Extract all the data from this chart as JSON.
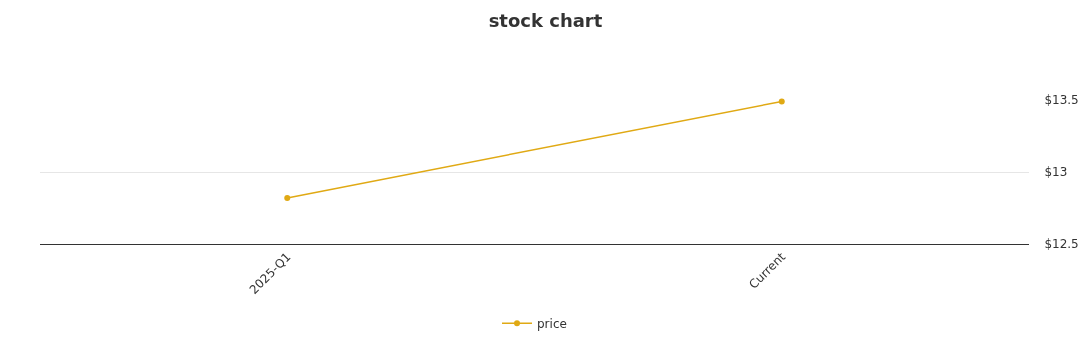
{
  "chart_data": {
    "type": "line",
    "title": "stock chart",
    "categories": [
      "2025-Q1",
      "Current"
    ],
    "series": [
      {
        "name": "price",
        "color": "#e0a914",
        "values": [
          12.82,
          13.49
        ]
      }
    ],
    "ylim": [
      12.5,
      13.5
    ],
    "yticks": [
      {
        "value": 12.5,
        "label": "$12.5"
      },
      {
        "value": 13,
        "label": "$13"
      },
      {
        "value": 13.5,
        "label": "$13.5"
      }
    ],
    "grid": "y",
    "legend": "bottom",
    "marker": "circle",
    "line_style": "solid"
  }
}
